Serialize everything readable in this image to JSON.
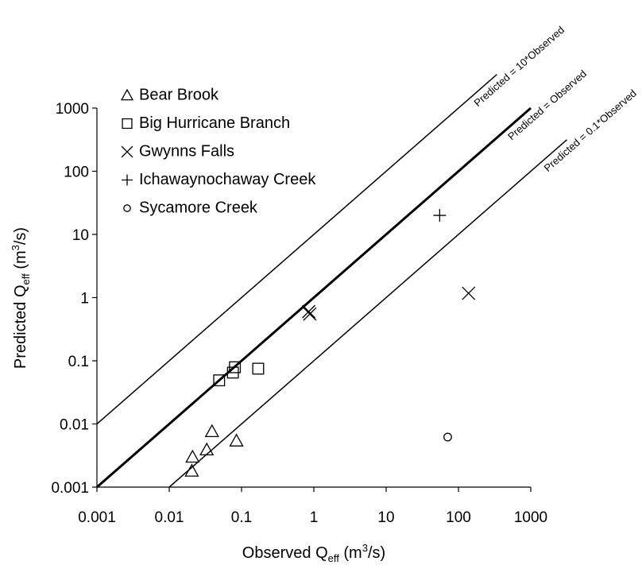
{
  "chart_data": {
    "type": "scatter",
    "log_x": true,
    "log_y": true,
    "grid": false,
    "legend_position": "upper left",
    "x_label": [
      "Observed Q",
      "eff",
      " (m",
      "3",
      "/s)"
    ],
    "y_label": [
      "Predicted Q",
      "eff",
      " (m",
      "3",
      "/s)"
    ],
    "xlim": [
      0.001,
      1000
    ],
    "ylim": [
      0.001,
      1000
    ],
    "xticks": [
      0.001,
      0.01,
      0.1,
      1,
      10,
      100,
      1000
    ],
    "yticks": [
      0.001,
      0.01,
      0.1,
      1,
      10,
      100,
      1000
    ],
    "reference_lines": [
      {
        "label": "Predicted = 10*Observed",
        "factor": 10,
        "x_range": [
          0.001,
          340
        ],
        "width": 1.5
      },
      {
        "label": "Predicted = Observed",
        "factor": 1,
        "x_range": [
          0.001,
          1000
        ],
        "width": 3
      },
      {
        "label": "Predicted = 0.1*Observed",
        "factor": 0.1,
        "x_range": [
          0.01,
          3160
        ],
        "width": 1.5
      }
    ],
    "series": [
      {
        "name": "Bear Brook",
        "marker": "triangle",
        "color": "#000000",
        "x": [
          0.0205,
          0.021,
          0.033,
          0.039,
          0.085
        ],
        "values": [
          0.0018,
          0.003,
          0.0039,
          0.0076,
          0.0054
        ]
      },
      {
        "name": "Big Hurricane Branch",
        "marker": "square",
        "color": "#000000",
        "x": [
          0.049,
          0.076,
          0.081,
          0.17
        ],
        "values": [
          0.049,
          0.065,
          0.079,
          0.075
        ]
      },
      {
        "name": "Gwynns Falls",
        "marker": "x",
        "color": "#000000",
        "x": [
          0.85,
          0.88,
          138
        ],
        "values": [
          0.6,
          0.55,
          1.17
        ]
      },
      {
        "name": "Ichawaynochaway Creek",
        "marker": "plus",
        "color": "#000000",
        "x": [
          55
        ],
        "values": [
          20
        ]
      },
      {
        "name": "Sycamore Creek",
        "marker": "circle",
        "color": "#000000",
        "x": [
          71
        ],
        "values": [
          0.0062
        ]
      }
    ]
  }
}
